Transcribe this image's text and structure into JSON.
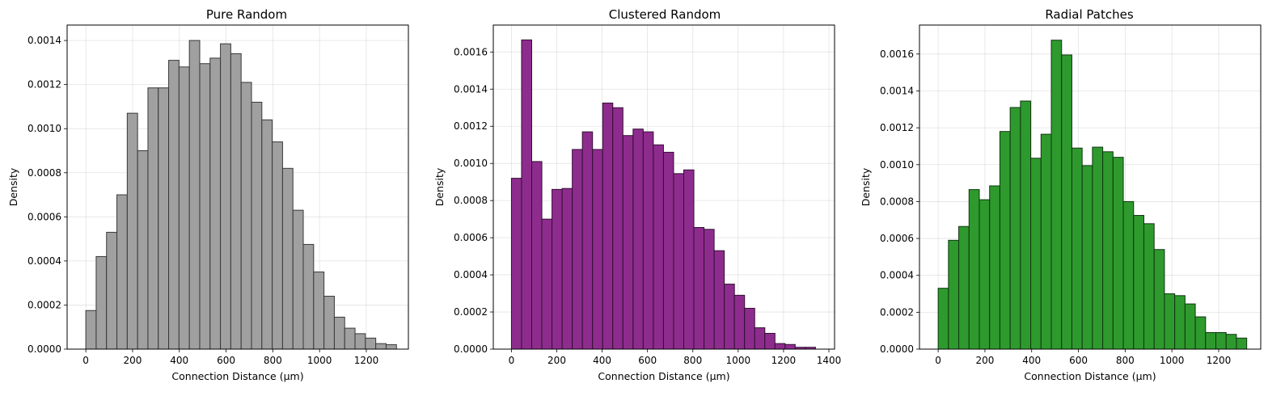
{
  "chart_data": [
    {
      "type": "bar",
      "title": "Pure Random",
      "xlabel": "Connection Distance (μm)",
      "ylabel": "Density",
      "bin_width": 44.3,
      "bin_start": 0,
      "values": [
        0.000175,
        0.00042,
        0.00053,
        0.0007,
        0.00107,
        0.0009,
        0.001185,
        0.001185,
        0.00131,
        0.00128,
        0.0014,
        0.001295,
        0.00132,
        0.001385,
        0.00134,
        0.00121,
        0.00112,
        0.00104,
        0.00094,
        0.00082,
        0.00063,
        0.000475,
        0.00035,
        0.00024,
        0.000145,
        9.5e-05,
        7e-05,
        5e-05,
        2.5e-05,
        2e-05
      ],
      "xlim": [
        -80,
        1380
      ],
      "ylim": [
        0,
        0.00147
      ],
      "xticks": [
        0,
        200,
        400,
        600,
        800,
        1000,
        1200
      ],
      "yticks": [
        0,
        0.0002,
        0.0004,
        0.0006,
        0.0008,
        0.001,
        0.0012,
        0.0014
      ],
      "ytick_labels": [
        "0.0000",
        "0.0002",
        "0.0004",
        "0.0006",
        "0.0008",
        "0.0010",
        "0.0012",
        "0.0014"
      ],
      "grid": true,
      "color": "#a0a0a0"
    },
    {
      "type": "bar",
      "title": "Clustered Random",
      "xlabel": "Connection Distance (μm)",
      "ylabel": "Density",
      "bin_width": 44.7,
      "bin_start": 0,
      "values": [
        0.00092,
        0.001665,
        0.00101,
        0.0007,
        0.00086,
        0.000865,
        0.001075,
        0.00117,
        0.001075,
        0.001325,
        0.0013,
        0.00115,
        0.001185,
        0.00117,
        0.0011,
        0.00106,
        0.000945,
        0.000965,
        0.000655,
        0.000645,
        0.00053,
        0.00035,
        0.00029,
        0.00022,
        0.000115,
        8.5e-05,
        3e-05,
        2.5e-05,
        1e-05,
        1e-05
      ],
      "xlim": [
        -80,
        1425
      ],
      "ylim": [
        0,
        0.001745
      ],
      "xticks": [
        0,
        200,
        400,
        600,
        800,
        1000,
        1200,
        1400
      ],
      "yticks": [
        0,
        0.0002,
        0.0004,
        0.0006,
        0.0008,
        0.001,
        0.0012,
        0.0014,
        0.0016
      ],
      "ytick_labels": [
        "0.0000",
        "0.0002",
        "0.0004",
        "0.0006",
        "0.0008",
        "0.0010",
        "0.0012",
        "0.0014",
        "0.0016"
      ],
      "grid": true,
      "color": "#8e2c8e"
    },
    {
      "type": "bar",
      "title": "Radial Patches",
      "xlabel": "Connection Distance (μm)",
      "ylabel": "Density",
      "bin_width": 44,
      "bin_start": 0,
      "values": [
        0.00033,
        0.00059,
        0.000665,
        0.000865,
        0.00081,
        0.000885,
        0.00118,
        0.00131,
        0.001345,
        0.001035,
        0.001165,
        0.001675,
        0.001595,
        0.00109,
        0.000995,
        0.001095,
        0.00107,
        0.00104,
        0.0008,
        0.000725,
        0.00068,
        0.00054,
        0.0003,
        0.00029,
        0.000245,
        0.000175,
        9e-05,
        9e-05,
        8e-05,
        6e-05
      ],
      "xlim": [
        -80,
        1380
      ],
      "ylim": [
        0,
        0.001757
      ],
      "xticks": [
        0,
        200,
        400,
        600,
        800,
        1000,
        1200
      ],
      "yticks": [
        0,
        0.0002,
        0.0004,
        0.0006,
        0.0008,
        0.001,
        0.0012,
        0.0014,
        0.0016
      ],
      "ytick_labels": [
        "0.0000",
        "0.0002",
        "0.0004",
        "0.0006",
        "0.0008",
        "0.0010",
        "0.0012",
        "0.0014",
        "0.0016"
      ],
      "grid": true,
      "color": "#2e9a2e"
    }
  ]
}
